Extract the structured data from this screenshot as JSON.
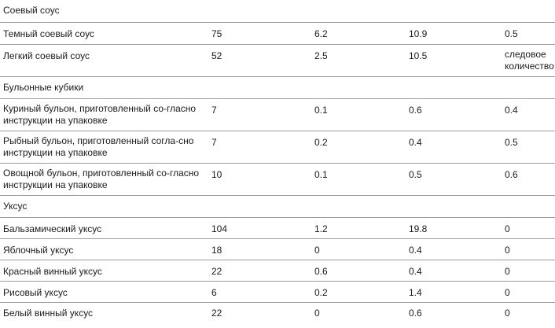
{
  "sections": [
    {
      "title": "Соевый соус",
      "rows": [
        {
          "name": "Темный соевый соус",
          "values": [
            "75",
            "6.2",
            "10.9",
            "0.5"
          ]
        },
        {
          "name": "Легкий соевый соус",
          "values": [
            "52",
            "2.5",
            "10.5",
            "следовое количество"
          ]
        }
      ]
    },
    {
      "title": "Бульонные кубики",
      "rows": [
        {
          "name": "Куриный бульон, приготовленный со-гласно инструкции на упаковке",
          "values": [
            "7",
            "0.1",
            "0.6",
            "0.4"
          ]
        },
        {
          "name": "Рыбный бульон, приготовленный согла-сно инструкции на упаковке",
          "values": [
            "7",
            "0.2",
            "0.4",
            "0.5"
          ]
        },
        {
          "name": "Овощной бульон, приготовленный со-гласно инструкции на упаковке",
          "values": [
            "10",
            "0.1",
            "0.5",
            "0.6"
          ]
        }
      ]
    },
    {
      "title": "Уксус",
      "rows": [
        {
          "name": "Бальзамический уксус",
          "values": [
            "104",
            "1.2",
            "19.8",
            "0"
          ]
        },
        {
          "name": "Яблочный уксус",
          "values": [
            "18",
            "0",
            "0.4",
            "0"
          ]
        },
        {
          "name": "Красный винный уксус",
          "values": [
            "22",
            "0.6",
            "0.4",
            "0"
          ]
        },
        {
          "name": "Рисовый уксус",
          "values": [
            "6",
            "0.2",
            "1.4",
            "0"
          ]
        },
        {
          "name": "Белый винный уксус",
          "values": [
            "22",
            "0",
            "0.6",
            "0"
          ]
        }
      ]
    }
  ]
}
